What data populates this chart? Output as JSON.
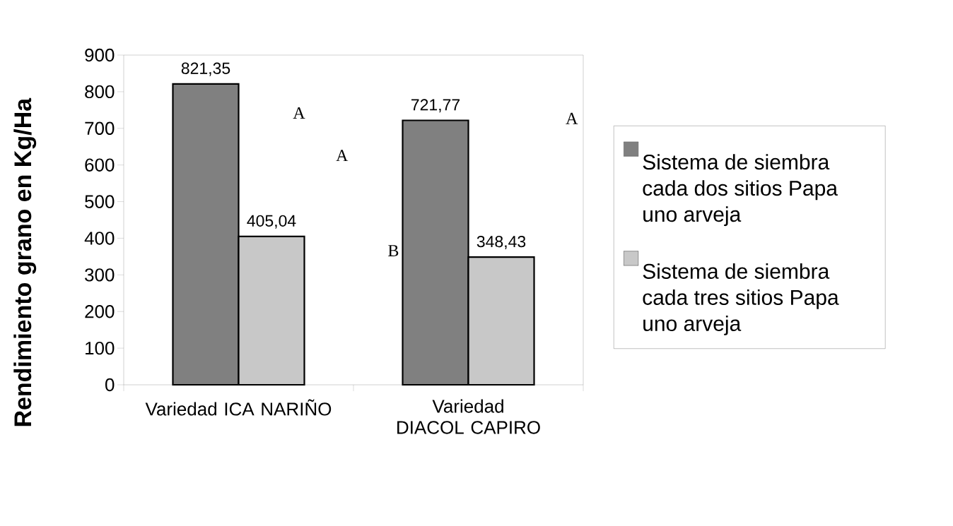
{
  "chart_data": {
    "type": "bar",
    "ylabel": "Rendimiento grano en Kg/Ha",
    "categories": [
      "Variedad ICA NARIÑO",
      "Variedad DIACOL CAPIRO"
    ],
    "series": [
      {
        "name": "Sistema de siembra cada dos sitios Papa uno arveja",
        "color": "#808080",
        "values": [
          821.35,
          721.77
        ],
        "value_labels": [
          "821,35",
          "721,77"
        ]
      },
      {
        "name": "Sistema de siembra cada tres sitios Papa uno arveja",
        "color": "#c8c8c8",
        "values": [
          405.04,
          348.43
        ],
        "value_labels": [
          "405,04",
          "348,43"
        ]
      }
    ],
    "ylim": [
      0,
      900
    ],
    "yticks": [
      0,
      100,
      200,
      300,
      400,
      500,
      600,
      700,
      800,
      900
    ],
    "annotations": [
      "A",
      "A",
      "B",
      "A"
    ],
    "legend": "right"
  }
}
